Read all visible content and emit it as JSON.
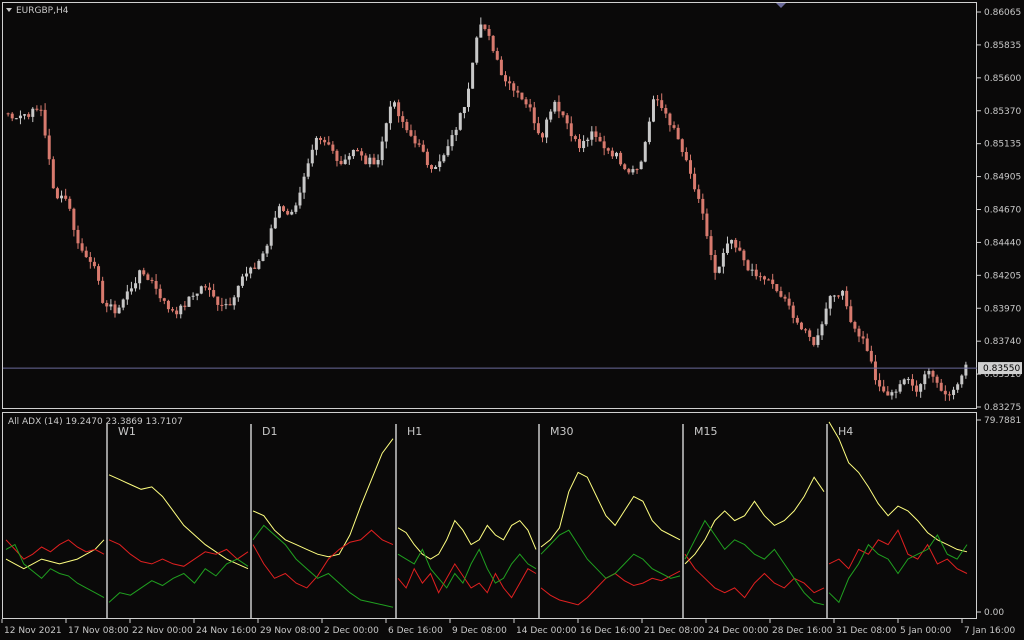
{
  "window": {
    "symbol_label": "EURGBP,H4",
    "menu_icon": "triangle-down-icon"
  },
  "colors": {
    "background": "#0a0909",
    "grid_border": "#d0d0d0",
    "bull_candle": "#c8c8c8",
    "bear_candle": "#d87a6e",
    "price_line": "#6a6a9a",
    "adx_line": "#ffff80",
    "plus_di": "#e02020",
    "minus_di": "#20a020",
    "separator": "#9a9a9a"
  },
  "chart_data": [
    {
      "type": "candlestick",
      "title": "EURGBP,H4",
      "price_axis_labels": [
        "0.86065",
        "0.85835",
        "0.85600",
        "0.85370",
        "0.85135",
        "0.84905",
        "0.84670",
        "0.84440",
        "0.84205",
        "0.83970",
        "0.83740",
        "0.83510",
        "0.83275"
      ],
      "ylim": [
        0.83275,
        0.86065
      ],
      "current_price": "0.83550",
      "price_path": [
        0.8535,
        0.8533,
        0.8535,
        0.8538,
        0.8478,
        0.8476,
        0.844,
        0.8432,
        0.84,
        0.8395,
        0.841,
        0.8423,
        0.8415,
        0.8398,
        0.8395,
        0.8405,
        0.8414,
        0.8402,
        0.84,
        0.8418,
        0.8425,
        0.844,
        0.847,
        0.8463,
        0.8488,
        0.8515,
        0.8512,
        0.85,
        0.851,
        0.85,
        0.8503,
        0.8545,
        0.8525,
        0.8515,
        0.8498,
        0.85,
        0.852,
        0.8545,
        0.86,
        0.8585,
        0.856,
        0.8552,
        0.854,
        0.8518,
        0.8545,
        0.853,
        0.851,
        0.852,
        0.8512,
        0.8505,
        0.8495,
        0.85,
        0.8545,
        0.8535,
        0.8515,
        0.849,
        0.846,
        0.8418,
        0.8445,
        0.8435,
        0.842,
        0.8418,
        0.8408,
        0.8396,
        0.838,
        0.8372,
        0.8405,
        0.841,
        0.8385,
        0.8372,
        0.834,
        0.8335,
        0.8348,
        0.834,
        0.8355,
        0.834,
        0.8338,
        0.8355
      ],
      "x_tick_labels": [
        "12 Nov 2021",
        "17 Nov 08:00",
        "22 Nov 00:00",
        "24 Nov 16:00",
        "29 Nov 08:00",
        "2 Dec 00:00",
        "6 Dec 16:00",
        "9 Dec 08:00",
        "14 Dec 00:00",
        "16 Dec 16:00",
        "21 Dec 08:00",
        "24 Dec 00:00",
        "28 Dec 16:00",
        "31 Dec 08:00",
        "5 Jan 00:00",
        "7 Jan 16:00"
      ]
    },
    {
      "type": "line",
      "title": "All ADX (14) 19.2470 23.3869 13.7107",
      "y_axis_labels": [
        "79.7881",
        "0.00"
      ],
      "ylim": [
        0,
        79.7881
      ],
      "panels": [
        {
          "label": "",
          "series": [
            {
              "color": "#ffff80",
              "values": [
                22,
                20,
                18,
                20,
                22,
                21,
                20,
                21,
                22,
                24,
                26,
                30
              ]
            },
            {
              "color": "#e02020",
              "values": [
                30,
                26,
                22,
                24,
                27,
                25,
                28,
                30,
                27,
                25,
                26,
                24
              ]
            },
            {
              "color": "#20a020",
              "values": [
                26,
                28,
                20,
                17,
                14,
                18,
                16,
                15,
                12,
                10,
                8,
                6
              ]
            }
          ]
        },
        {
          "label": "W1",
          "series": [
            {
              "color": "#ffff80",
              "values": [
                57,
                55,
                53,
                51,
                52,
                48,
                42,
                36,
                32,
                28,
                25,
                22,
                20,
                18
              ]
            },
            {
              "color": "#e02020",
              "values": [
                30,
                28,
                24,
                21,
                20,
                22,
                20,
                19,
                22,
                25,
                24,
                26,
                22,
                25
              ]
            },
            {
              "color": "#20a020",
              "values": [
                4,
                8,
                7,
                10,
                13,
                11,
                14,
                16,
                12,
                18,
                15,
                20,
                22,
                19
              ]
            }
          ]
        },
        {
          "label": "D1",
          "series": [
            {
              "color": "#ffff80",
              "values": [
                42,
                40,
                34,
                30,
                28,
                26,
                24,
                23,
                24,
                32,
                44,
                55,
                66,
                72
              ]
            },
            {
              "color": "#e02020",
              "values": [
                28,
                20,
                14,
                16,
                12,
                10,
                15,
                22,
                26,
                29,
                30,
                34,
                30,
                28
              ]
            },
            {
              "color": "#20a020",
              "values": [
                30,
                36,
                32,
                28,
                22,
                18,
                14,
                16,
                12,
                8,
                5,
                4,
                3,
                2
              ]
            }
          ]
        },
        {
          "label": "H1",
          "series": [
            {
              "color": "#ffff80",
              "values": [
                35,
                33,
                28,
                24,
                22,
                24,
                30,
                38,
                34,
                28,
                30,
                36,
                32,
                30,
                36,
                38,
                34,
                26
              ]
            },
            {
              "color": "#e02020",
              "values": [
                14,
                10,
                18,
                12,
                16,
                8,
                14,
                20,
                15,
                10,
                12,
                8,
                16,
                10,
                6,
                12,
                18,
                16
              ]
            },
            {
              "color": "#20a020",
              "values": [
                24,
                22,
                20,
                26,
                18,
                14,
                10,
                16,
                12,
                20,
                26,
                18,
                12,
                14,
                20,
                24,
                20,
                18
              ]
            }
          ]
        },
        {
          "label": "M30",
          "series": [
            {
              "color": "#ffff80",
              "values": [
                27,
                30,
                35,
                50,
                58,
                56,
                48,
                40,
                36,
                42,
                48,
                46,
                38,
                34,
                32,
                30
              ]
            },
            {
              "color": "#e02020",
              "values": [
                10,
                7,
                5,
                4,
                3,
                6,
                10,
                14,
                16,
                13,
                11,
                12,
                14,
                13,
                15,
                17
              ]
            },
            {
              "color": "#20a020",
              "values": [
                24,
                28,
                32,
                34,
                28,
                22,
                18,
                14,
                16,
                20,
                24,
                22,
                18,
                16,
                14,
                15
              ]
            }
          ]
        },
        {
          "label": "M15",
          "series": [
            {
              "color": "#ffff80",
              "values": [
                20,
                24,
                30,
                38,
                42,
                38,
                40,
                46,
                40,
                36,
                38,
                42,
                48,
                56,
                50
              ]
            },
            {
              "color": "#e02020",
              "values": [
                24,
                18,
                14,
                10,
                8,
                10,
                6,
                12,
                16,
                12,
                10,
                14,
                12,
                8,
                10
              ]
            },
            {
              "color": "#20a020",
              "values": [
                22,
                30,
                38,
                32,
                26,
                30,
                28,
                24,
                22,
                26,
                20,
                14,
                8,
                4,
                3
              ]
            }
          ]
        },
        {
          "label": "H4",
          "series": [
            {
              "color": "#ffff80",
              "values": [
                79,
                72,
                62,
                58,
                52,
                45,
                40,
                44,
                42,
                38,
                33,
                30,
                28,
                26,
                25
              ]
            },
            {
              "color": "#e02020",
              "values": [
                20,
                22,
                18,
                26,
                24,
                30,
                28,
                34,
                24,
                22,
                28,
                20,
                22,
                18,
                16
              ]
            },
            {
              "color": "#20a020",
              "values": [
                8,
                4,
                14,
                20,
                28,
                24,
                22,
                16,
                22,
                24,
                26,
                32,
                24,
                22,
                28
              ]
            }
          ]
        }
      ]
    }
  ]
}
